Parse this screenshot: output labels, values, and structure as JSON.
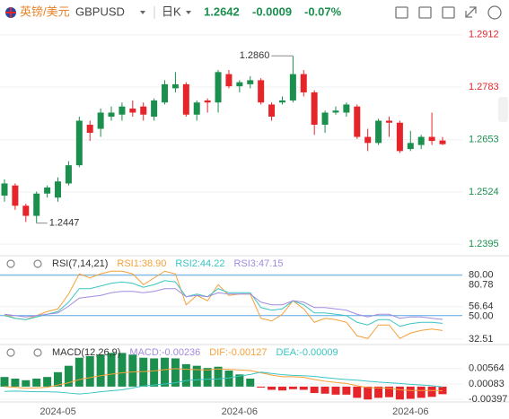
{
  "header": {
    "name": "英镑/美元",
    "symbol": "GBPUSD",
    "period": "日K",
    "price": "1.2642",
    "change": "-0.0009",
    "change_pct": "-0.07%"
  },
  "chart_data": [
    {
      "type": "candlestick",
      "categories": [
        null,
        null,
        null,
        null,
        null,
        "2024-05",
        null,
        null,
        null,
        null,
        null,
        null,
        null,
        null,
        null,
        null,
        null,
        null,
        null,
        null,
        null,
        null,
        "2024-06",
        null,
        null,
        null,
        null,
        null,
        null,
        null,
        null,
        null,
        null,
        null,
        null,
        null,
        null,
        null,
        "2024-06",
        null,
        null,
        null
      ],
      "open": [
        1.2515,
        1.254,
        1.249,
        1.2465,
        1.252,
        1.251,
        1.2545,
        1.259,
        1.269,
        1.268,
        1.271,
        1.2715,
        1.273,
        1.2735,
        1.271,
        1.2745,
        1.278,
        1.279,
        1.2715,
        1.275,
        1.2745,
        1.2815,
        1.2785,
        1.279,
        1.28,
        1.274,
        1.2745,
        1.275,
        1.2815,
        1.277,
        1.269,
        1.272,
        1.272,
        1.2735,
        1.266,
        1.2645,
        1.27,
        1.2695,
        1.263,
        1.264,
        1.266,
        1.2651
      ],
      "high": [
        1.2555,
        1.2545,
        1.2495,
        1.2525,
        1.254,
        1.256,
        1.26,
        1.271,
        1.27,
        1.273,
        1.2735,
        1.2745,
        1.275,
        1.2745,
        1.2755,
        1.28,
        1.282,
        1.2795,
        1.275,
        1.2755,
        1.2825,
        1.2825,
        1.28,
        1.281,
        1.2805,
        1.2745,
        1.276,
        1.286,
        1.2825,
        1.2775,
        1.2725,
        1.2735,
        1.2745,
        1.274,
        1.268,
        1.2705,
        1.271,
        1.27,
        1.2675,
        1.2665,
        1.272,
        1.266
      ],
      "low": [
        1.25,
        1.248,
        1.245,
        1.2447,
        1.251,
        1.25,
        1.254,
        1.2585,
        1.265,
        1.266,
        1.27,
        1.27,
        1.271,
        1.27,
        1.27,
        1.274,
        1.277,
        1.271,
        1.27,
        1.272,
        1.272,
        1.278,
        1.277,
        1.278,
        1.274,
        1.27,
        1.274,
        1.2745,
        1.276,
        1.2665,
        1.267,
        1.2715,
        1.271,
        1.2655,
        1.2625,
        1.264,
        1.266,
        1.262,
        1.2625,
        1.263,
        1.264,
        1.264
      ],
      "close": [
        1.2545,
        1.249,
        1.2465,
        1.252,
        1.2535,
        1.255,
        1.259,
        1.27,
        1.267,
        1.272,
        1.272,
        1.2735,
        1.272,
        1.2715,
        1.275,
        1.279,
        1.279,
        1.2715,
        1.2745,
        1.2745,
        1.282,
        1.2785,
        1.2795,
        1.28,
        1.2745,
        1.271,
        1.275,
        1.2815,
        1.277,
        1.269,
        1.272,
        1.2725,
        1.274,
        1.266,
        1.2645,
        1.27,
        1.2695,
        1.2625,
        1.2645,
        1.266,
        1.265,
        1.2642
      ],
      "up_color": "#1b8f4e",
      "down_color": "#e5252a",
      "ylim": [
        1.2371,
        1.2936
      ],
      "yticks": [
        1.2912,
        1.2783,
        1.2653,
        1.2524,
        1.2395
      ],
      "ytick_colors": [
        "#e5252a",
        "#e5252a",
        "#1b8f4e",
        "#1b8f4e",
        "#1b8f4e"
      ],
      "high_label": "1.2860",
      "low_label": "1.2447"
    },
    {
      "type": "line",
      "title": "RSI(7,14,21)",
      "series": [
        {
          "name": "RSI1:38.90",
          "color": "#f5a03a",
          "values": [
            51,
            48,
            47,
            50,
            53,
            55,
            66,
            81,
            78,
            81,
            83,
            83,
            81,
            73,
            78,
            83,
            81,
            58,
            65,
            61,
            73,
            65,
            66,
            66,
            48,
            46,
            51,
            61,
            55,
            45,
            48,
            47,
            45,
            35,
            33,
            43,
            43,
            33,
            37,
            39,
            40,
            38.9
          ]
        },
        {
          "name": "RSI2:44.22",
          "color": "#3bc4c4",
          "values": [
            50,
            48,
            47,
            49,
            51,
            53,
            60,
            70,
            70,
            72,
            74,
            75,
            74,
            71,
            73,
            76,
            75,
            64,
            66,
            64,
            70,
            67,
            67,
            67,
            56,
            54,
            55,
            61,
            58,
            52,
            52,
            51,
            50,
            45,
            43,
            47,
            47,
            42,
            44,
            45,
            45,
            44.22
          ]
        },
        {
          "name": "RSI3:47.15",
          "color": "#a18be0",
          "values": [
            51,
            50,
            49,
            50,
            51,
            52,
            57,
            63,
            64,
            65,
            67,
            68,
            68,
            67,
            68,
            70,
            70,
            64,
            65,
            64,
            67,
            66,
            66,
            66,
            60,
            58,
            58,
            61,
            60,
            56,
            56,
            55,
            54,
            51,
            49,
            51,
            51,
            48,
            49,
            49,
            48,
            47.15
          ]
        }
      ],
      "ylim": [
        30.5,
        84.5
      ],
      "yticks": [
        {
          "value": 80,
          "label": "80.00"
        },
        80.78,
        56.64,
        {
          "value": 50,
          "label": "50.00"
        },
        32.51
      ],
      "hlines": [
        80,
        50
      ],
      "hline_color": "#5aa9e6"
    },
    {
      "type": "macd",
      "title": "MACD(12,26,9)",
      "histogram": {
        "name": "MACD:-0.00236",
        "color": "#a18be0",
        "up_color": "#1b8f4e",
        "down_color": "#e5252a",
        "values": [
          0.003,
          0.0025,
          0.002,
          0.0025,
          0.003,
          0.0045,
          0.0065,
          0.009,
          0.0095,
          0.01,
          0.0105,
          0.0105,
          0.01,
          0.009,
          0.0088,
          0.009,
          0.0088,
          0.007,
          0.0065,
          0.0058,
          0.0062,
          0.005,
          0.0038,
          0.0025,
          -0.0003,
          -0.001,
          -0.0012,
          -0.0008,
          -0.001,
          -0.002,
          -0.0022,
          -0.0025,
          -0.0025,
          -0.0035,
          -0.004,
          -0.0035,
          -0.0033,
          -0.004,
          -0.0038,
          -0.0035,
          -0.0032,
          -0.00236
        ]
      },
      "series": [
        {
          "name": "DIF:-0.00127",
          "color": "#f5a03a",
          "values": [
            0.0,
            -0.0002,
            -0.0005,
            -0.0004,
            -0.0002,
            0.0005,
            0.0012,
            0.0022,
            0.0028,
            0.0034,
            0.0039,
            0.0043,
            0.0046,
            0.0047,
            0.0049,
            0.0053,
            0.0056,
            0.0054,
            0.0053,
            0.0052,
            0.0055,
            0.0054,
            0.0052,
            0.005,
            0.0043,
            0.0036,
            0.0031,
            0.0031,
            0.0029,
            0.0022,
            0.0017,
            0.0013,
            0.001,
            0.0003,
            -0.0003,
            -0.0004,
            -0.0005,
            -0.001,
            -0.0012,
            -0.0012,
            -0.0012,
            -0.00127
          ]
        },
        {
          "name": "DEA:-0.00009",
          "color": "#3bc4c4",
          "values": [
            -0.0015,
            -0.0014,
            -0.0015,
            -0.0016,
            -0.0016,
            -0.0017,
            -0.002,
            -0.0023,
            -0.002,
            -0.0016,
            -0.0013,
            -0.001,
            -0.0004,
            0.0002,
            0.0005,
            0.0008,
            0.0012,
            0.0019,
            0.0021,
            0.0023,
            0.0024,
            0.0027,
            0.0033,
            0.0038,
            0.0045,
            0.0041,
            0.0037,
            0.0035,
            0.0034,
            0.0032,
            0.0028,
            0.0025,
            0.0022,
            0.002,
            0.0017,
            0.0014,
            0.0012,
            0.001,
            0.0007,
            0.0005,
            0.0003,
            -9e-05
          ]
        }
      ],
      "ylim": [
        -0.0045,
        0.012
      ],
      "yticks": [
        0.00564,
        0.00083,
        -0.00397
      ]
    }
  ]
}
